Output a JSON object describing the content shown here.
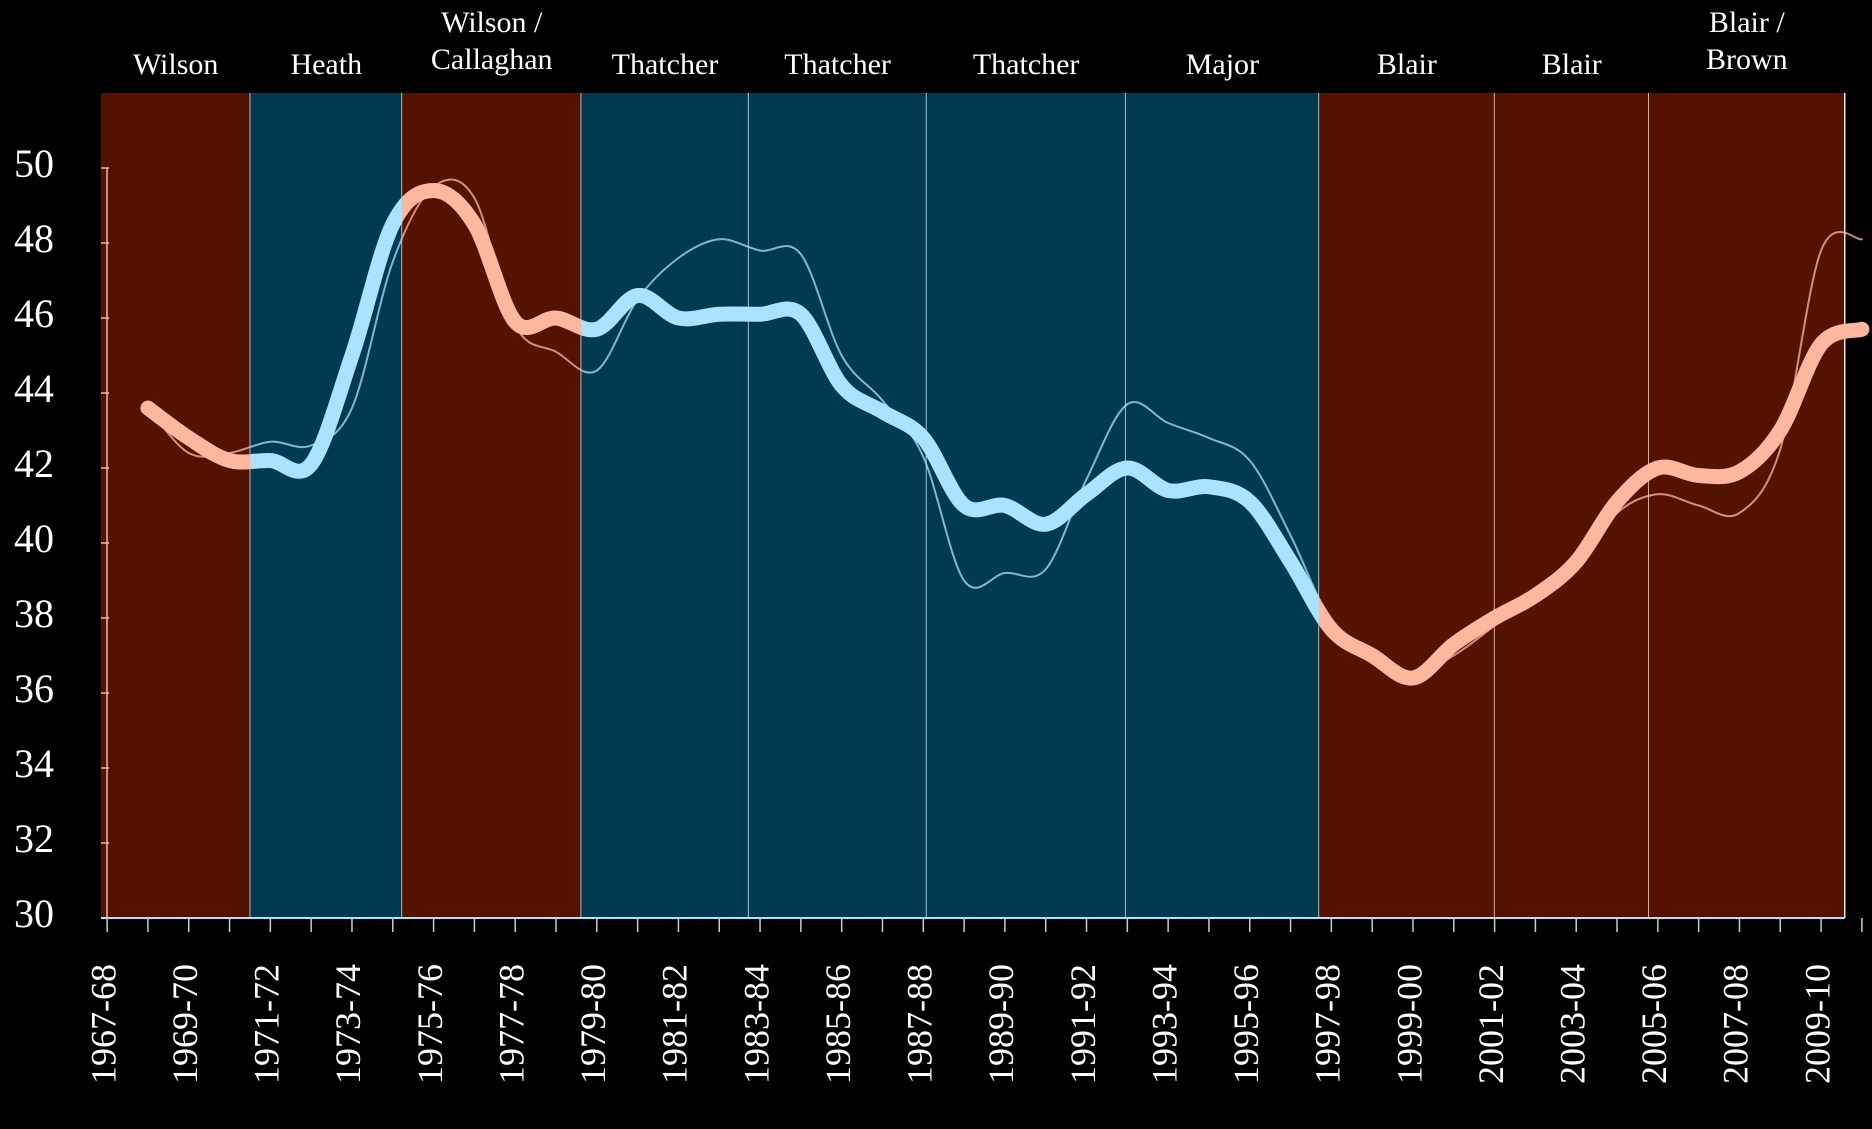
{
  "chart_data": {
    "type": "line",
    "categories": [
      "1967-68",
      null,
      "1969-70",
      null,
      "1971-72",
      null,
      "1973-74",
      null,
      "1975-76",
      null,
      "1977-78",
      null,
      "1979-80",
      null,
      "1981-82",
      null,
      "1983-84",
      null,
      "1985-86",
      null,
      "1987-88",
      null,
      "1989-90",
      null,
      "1991-92",
      null,
      "1993-94",
      null,
      "1995-96",
      null,
      "1997-98",
      null,
      "1999-00",
      null,
      "2001-02",
      null,
      "2003-04",
      null,
      "2005-06",
      null,
      "2007-08",
      null,
      "2009-10",
      null
    ],
    "series": [
      {
        "values": [
          null,
          43.6,
          42.8,
          42.2,
          42.2,
          42.1,
          45.0,
          48.5,
          49.4,
          48.5,
          45.9,
          46.0,
          45.7,
          46.6,
          46.0,
          46.1,
          46.1,
          46.1,
          44.2,
          43.5,
          42.8,
          41.0,
          41.0,
          40.5,
          41.3,
          42.0,
          41.4,
          41.5,
          41.1,
          39.5,
          37.7,
          37.0,
          36.4,
          37.3,
          38.0,
          38.6,
          39.5,
          41.1,
          42.0,
          41.8,
          41.9,
          43.0,
          45.3,
          45.7
        ]
      },
      {
        "values": [
          null,
          43.6,
          42.4,
          42.4,
          42.7,
          42.6,
          43.6,
          47.5,
          49.5,
          49.2,
          45.8,
          45.1,
          44.6,
          46.5,
          47.6,
          48.1,
          47.8,
          47.7,
          45.0,
          43.8,
          42.3,
          39.0,
          39.2,
          39.3,
          41.7,
          43.7,
          43.2,
          42.8,
          42.2,
          40.2,
          37.9,
          37.0,
          36.5,
          37.0,
          37.8,
          38.7,
          39.4,
          40.8,
          41.3,
          41.0,
          40.8,
          42.5,
          47.8,
          48.1
        ]
      }
    ],
    "governments": [
      {
        "label": [
          "Wilson"
        ],
        "start": -0.15,
        "end": 3.51,
        "color": "#541200",
        "line_color": "#ffb7a0"
      },
      {
        "label": [
          "Heath"
        ],
        "start": 3.51,
        "end": 7.23,
        "color": "#003a50",
        "line_color": "#a8e4ff"
      },
      {
        "label": [
          "Wilson /",
          "Callaghan"
        ],
        "start": 7.23,
        "end": 11.62,
        "color": "#541200",
        "line_color": "#ffb7a0"
      },
      {
        "label": [
          "Thatcher"
        ],
        "start": 11.62,
        "end": 15.72,
        "color": "#003a50",
        "line_color": "#a8e4ff"
      },
      {
        "label": [
          "Thatcher"
        ],
        "start": 15.72,
        "end": 20.08,
        "color": "#003a50",
        "line_color": "#a8e4ff"
      },
      {
        "label": [
          "Thatcher"
        ],
        "start": 20.08,
        "end": 24.96,
        "color": "#003a50",
        "line_color": "#a8e4ff"
      },
      {
        "label": [
          "Major"
        ],
        "start": 24.96,
        "end": 29.7,
        "color": "#003a50",
        "line_color": "#a8e4ff"
      },
      {
        "label": [
          "Blair"
        ],
        "start": 29.7,
        "end": 34.0,
        "color": "#541200",
        "line_color": "#ffb7a0"
      },
      {
        "label": [
          "Blair"
        ],
        "start": 34.0,
        "end": 37.78,
        "color": "#541200",
        "line_color": "#ffb7a0"
      },
      {
        "label": [
          "Blair /",
          "Brown"
        ],
        "start": 37.78,
        "end": 42.58,
        "color": "#541200",
        "line_color": "#ffb7a0"
      }
    ],
    "xlim": [
      -0.15,
      43.15
    ],
    "ylim": [
      30,
      52
    ],
    "yticks": [
      30,
      32,
      34,
      36,
      38,
      40,
      42,
      44,
      46,
      48,
      50
    ]
  }
}
